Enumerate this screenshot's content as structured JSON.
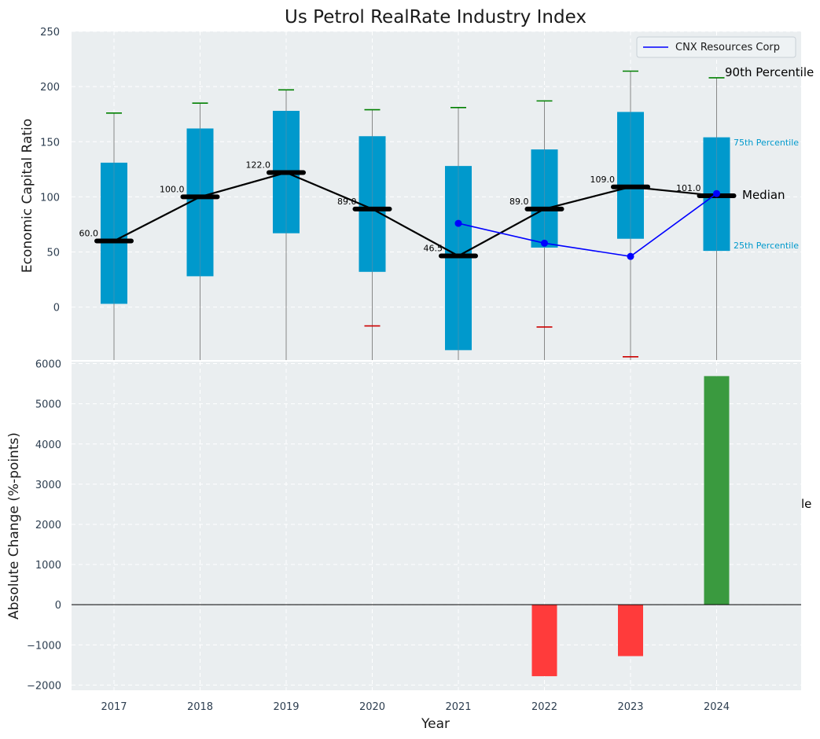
{
  "chart_data": [
    {
      "type": "box",
      "title": "Us Petrol RealRate Industry Index",
      "xlabel": "",
      "ylabel": "Economic Capital Ratio",
      "ylim": [
        -48,
        250
      ],
      "yticks": [
        "250",
        "200",
        "150",
        "100",
        "50",
        "0"
      ],
      "ytick_values": [
        250,
        200,
        150,
        100,
        50,
        0
      ],
      "categories": [
        "2017",
        "2018",
        "2019",
        "2020",
        "2021",
        "2022",
        "2023",
        "2024"
      ],
      "boxes": [
        {
          "year": "2017",
          "q1": 3,
          "q3": 131,
          "median": 60.0,
          "median_label": "60.0",
          "p90": 176,
          "p10": null
        },
        {
          "year": "2018",
          "q1": 28,
          "q3": 162,
          "median": 100.0,
          "median_label": "100.0",
          "p90": 185,
          "p10": null
        },
        {
          "year": "2019",
          "q1": 67,
          "q3": 178,
          "median": 122.0,
          "median_label": "122.0",
          "p90": 197,
          "p10": null
        },
        {
          "year": "2020",
          "q1": 32,
          "q3": 155,
          "median": 89.0,
          "median_label": "89.0",
          "p90": 179,
          "p10": -17
        },
        {
          "year": "2021",
          "q1": -39,
          "q3": 128,
          "median": 46.5,
          "median_label": "46.5",
          "p90": 181,
          "p10": null
        },
        {
          "year": "2022",
          "q1": 54,
          "q3": 143,
          "median": 89.0,
          "median_label": "89.0",
          "p90": 187,
          "p10": -18
        },
        {
          "year": "2023",
          "q1": 62,
          "q3": 177,
          "median": 109.0,
          "median_label": "109.0",
          "p90": 214,
          "p10": -45
        },
        {
          "year": "2024",
          "q1": 51,
          "q3": 154,
          "median": 101.0,
          "median_label": "101.0",
          "p90": 208,
          "p10": null
        }
      ],
      "company_series": {
        "name": "CNX Resources Corp",
        "color": "#0000ff",
        "years": [
          "2021",
          "2022",
          "2023",
          "2024"
        ],
        "values": [
          76,
          58,
          46,
          103
        ]
      },
      "legend": {
        "label": "CNX Resources Corp",
        "placement": "top-right"
      },
      "annotations": {
        "p90": "90th Percentile",
        "p75": "75th Percentile",
        "median": "Median",
        "p25": "25th Percentile",
        "clipped": "le"
      },
      "colors": {
        "box": "#0099cc",
        "median_line": "#000000",
        "p90_cap": "#008000",
        "p10_cap": "#cc0000",
        "panel_bg": "#eaeef0",
        "axis_text": "#2d3e50"
      }
    },
    {
      "type": "bar",
      "xlabel": "Year",
      "ylabel": "Absolute Change (%-points)",
      "ylim": [
        -2130,
        6050
      ],
      "yticks": [
        "6000",
        "5000",
        "4000",
        "3000",
        "2000",
        "1000",
        "0",
        "−1000",
        "−2000"
      ],
      "ytick_values": [
        6000,
        5000,
        4000,
        3000,
        2000,
        1000,
        0,
        -1000,
        -2000
      ],
      "categories": [
        "2017",
        "2018",
        "2019",
        "2020",
        "2021",
        "2022",
        "2023",
        "2024"
      ],
      "values": [
        0,
        0,
        0,
        0,
        0,
        -1780,
        -1280,
        5690
      ],
      "colors": {
        "positive": "#3a9a3f",
        "negative": "#ff3b3b"
      }
    }
  ]
}
